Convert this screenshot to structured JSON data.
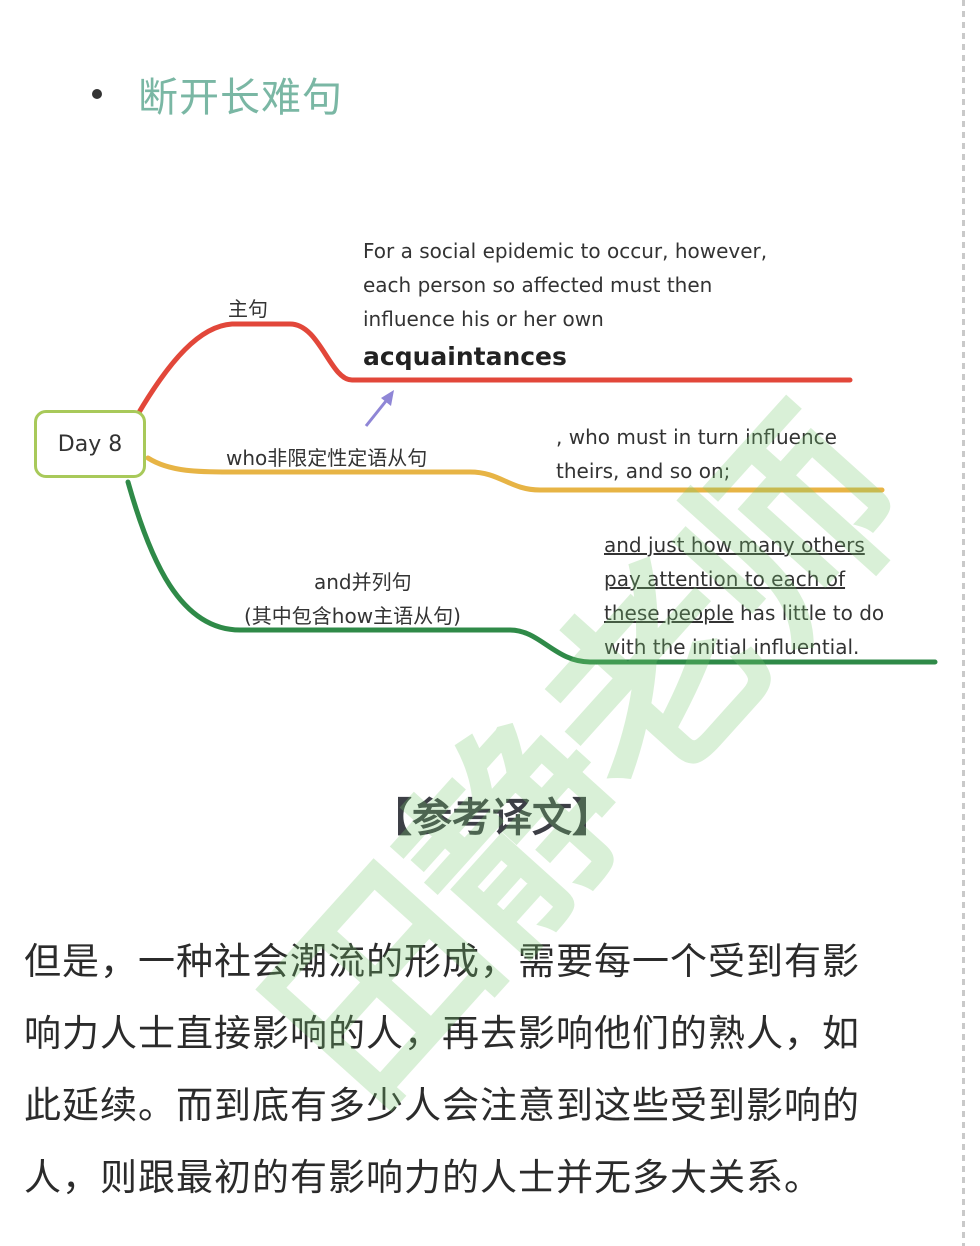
{
  "heading": "断开长难句",
  "mindmap": {
    "root": "Day 8",
    "branches": [
      {
        "label": "主句",
        "text_lines": [
          "For a social epidemic to occur, however,",
          "each person so affected must then",
          "influence his or her own"
        ],
        "emphasis": "acquaintances",
        "color": "#e2473a"
      },
      {
        "label": "who非限定性定语从句",
        "text_lines": [
          ", who must in turn influence",
          "theirs, and so on;"
        ],
        "color": "#e7b445"
      },
      {
        "label_lines": [
          "and并列句",
          "(其中包含how主语从句)"
        ],
        "text_segments": [
          {
            "underlined": "and just how many others"
          },
          {
            "underlined": "pay attention to each of"
          },
          {
            "underlined": "these people",
            "plain": " has little to do"
          },
          {
            "plain": "with the initial influential."
          }
        ],
        "color": "#2f8a48"
      }
    ],
    "arrow_color": "#8f86d6"
  },
  "section_title": "【参考译文】",
  "translation_lines": [
    "但是，一种社会潮流的形成，需要每一个受到有影",
    "响力人士直接影响的人，再去影响他们的熟人，如",
    "此延续。而到底有多少人会注意到这些受到影响的",
    "人，则跟最初的有影响力的人士并无多大关系。"
  ],
  "watermark": "田静老师"
}
